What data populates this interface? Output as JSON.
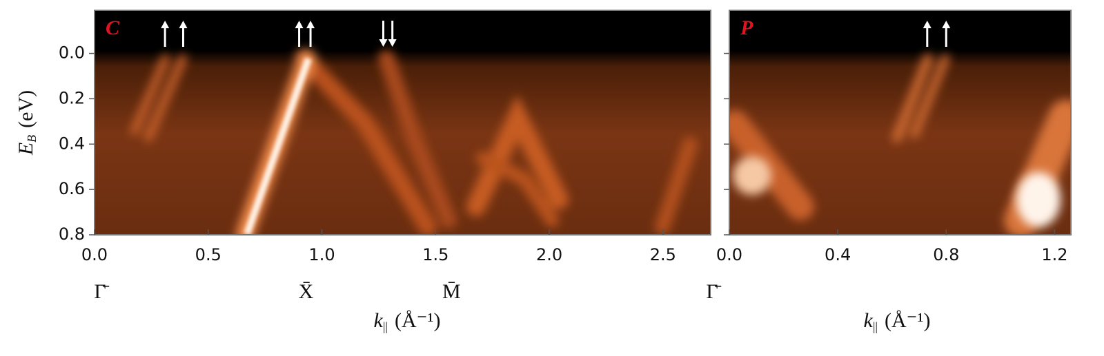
{
  "chart_data": [
    {
      "type": "image",
      "panel_label": "C",
      "xlim": [
        0,
        2.71
      ],
      "xticks": [
        {
          "value": 0,
          "label": "0.0"
        },
        0.5,
        {
          "value": 1,
          "label": "1.0"
        },
        1.5,
        {
          "value": 2,
          "label": "2.0"
        },
        2.5
      ],
      "ylim": [
        -0.19,
        0.8
      ],
      "y_inverted": true,
      "yticks": [
        {
          "value": 0,
          "label": "0.0"
        },
        0.2,
        0.4,
        0.6,
        0.8
      ],
      "x_label": {
        "symbol": "k",
        "subscript": "||",
        "unit": "(Å⁻¹)"
      },
      "y_label": {
        "symbol": "E",
        "subscript": "B",
        "unit": "(eV)"
      },
      "points": [
        {
          "label": "Γ̄",
          "x": 0
        },
        {
          "label": "X̄",
          "x": 0.93
        },
        {
          "label": "M̄",
          "x": 1.57
        }
      ],
      "arrows": [
        {
          "x": 0.31,
          "direction": "up"
        },
        {
          "x": 0.39,
          "direction": "up"
        },
        {
          "x": 0.9,
          "direction": "up"
        },
        {
          "x": 0.95,
          "direction": "up"
        },
        {
          "x": 1.27,
          "direction": "down"
        },
        {
          "x": 1.31,
          "direction": "down"
        }
      ]
    },
    {
      "type": "image",
      "panel_label": "P",
      "xlim": [
        0,
        1.26
      ],
      "xticks": [
        {
          "value": 0,
          "label": "0.0"
        },
        0.4,
        0.8,
        1.2
      ],
      "ylim": [
        -0.19,
        0.8
      ],
      "y_inverted": true,
      "yticks": [
        0,
        0.2,
        0.4,
        0.6,
        0.8
      ],
      "x_label": {
        "symbol": "k",
        "subscript": "||",
        "unit": "(Å⁻¹)"
      },
      "points": [
        {
          "label": "Γ̄",
          "x": 0
        }
      ],
      "arrows": [
        {
          "x": 0.73,
          "direction": "up"
        },
        {
          "x": 0.8,
          "direction": "up"
        }
      ]
    }
  ]
}
